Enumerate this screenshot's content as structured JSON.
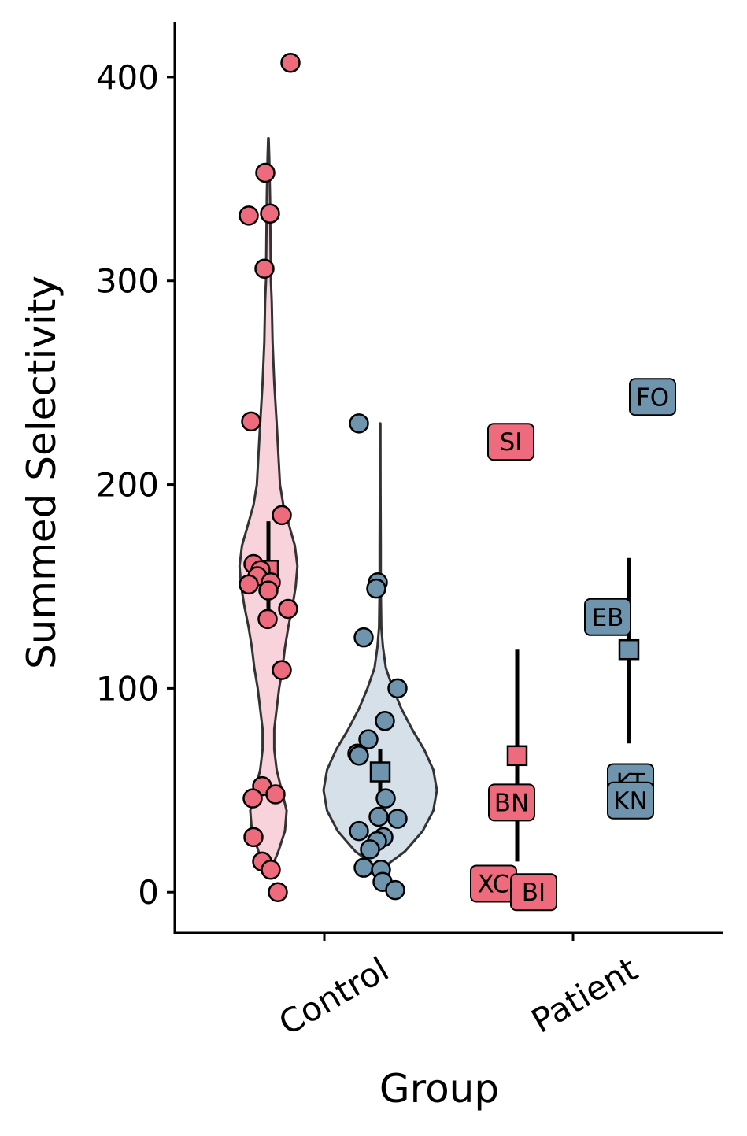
{
  "chart_data": {
    "type": "violin",
    "xlabel": "Group",
    "ylabel": "Summed Selectivity",
    "ylim": [
      -20,
      427
    ],
    "yticks": [
      0,
      100,
      200,
      300,
      400
    ],
    "categories": [
      "Control",
      "Patient"
    ],
    "colors": {
      "pink_fill": "#ee6b7e",
      "blue_fill": "#6f94ad",
      "pink_violin": "#f8d3dc",
      "blue_violin": "#d5e0e8",
      "outline": "#000000",
      "violin_line": "#333333"
    },
    "control_violins": [
      {
        "series": "pink",
        "y_range": [
          10,
          370
        ],
        "profile": [
          [
            10,
            0.02
          ],
          [
            20,
            0.12
          ],
          [
            30,
            0.2
          ],
          [
            40,
            0.22
          ],
          [
            50,
            0.16
          ],
          [
            60,
            0.1
          ],
          [
            70,
            0.07
          ],
          [
            80,
            0.07
          ],
          [
            90,
            0.1
          ],
          [
            100,
            0.13
          ],
          [
            110,
            0.17
          ],
          [
            120,
            0.2
          ],
          [
            130,
            0.24
          ],
          [
            140,
            0.29
          ],
          [
            150,
            0.33
          ],
          [
            160,
            0.35
          ],
          [
            170,
            0.32
          ],
          [
            180,
            0.25
          ],
          [
            190,
            0.18
          ],
          [
            200,
            0.14
          ],
          [
            215,
            0.12
          ],
          [
            230,
            0.1
          ],
          [
            250,
            0.07
          ],
          [
            270,
            0.05
          ],
          [
            290,
            0.04
          ],
          [
            300,
            0.03
          ],
          [
            320,
            0.025
          ],
          [
            340,
            0.02
          ],
          [
            360,
            0.01
          ],
          [
            370,
            0.003
          ]
        ],
        "mean": 158,
        "ci": [
          135,
          182
        ]
      },
      {
        "series": "blue",
        "y_range": [
          13,
          230
        ],
        "profile": [
          [
            13,
            0.08
          ],
          [
            20,
            0.35
          ],
          [
            30,
            0.6
          ],
          [
            40,
            0.75
          ],
          [
            50,
            0.8
          ],
          [
            60,
            0.75
          ],
          [
            70,
            0.62
          ],
          [
            80,
            0.45
          ],
          [
            90,
            0.3
          ],
          [
            100,
            0.18
          ],
          [
            110,
            0.08
          ],
          [
            120,
            0.04
          ],
          [
            130,
            0.015
          ],
          [
            150,
            0.008
          ],
          [
            170,
            0.008
          ],
          [
            200,
            0.005
          ],
          [
            230,
            0.003
          ]
        ],
        "mean": 59,
        "ci": [
          47,
          70
        ]
      }
    ],
    "control_points": [
      {
        "series": "pink",
        "values": [
          407,
          353,
          333,
          332,
          306,
          231,
          185,
          161,
          158,
          155,
          152,
          151,
          148,
          139,
          134,
          109,
          52,
          48,
          46,
          27,
          15,
          11,
          0
        ]
      },
      {
        "series": "blue",
        "values": [
          230,
          152,
          149,
          125,
          100,
          84,
          75,
          68,
          67,
          46,
          37,
          36,
          30,
          27,
          25,
          21,
          12,
          11,
          5,
          1
        ]
      }
    ],
    "patient_summaries": [
      {
        "series": "pink",
        "mean": 67,
        "ci": [
          15,
          119
        ]
      },
      {
        "series": "blue",
        "mean": 119,
        "ci": [
          73,
          164
        ]
      }
    ],
    "patient_labels": [
      {
        "series": "pink",
        "label": "SI",
        "value": 221
      },
      {
        "series": "pink",
        "label": "BN",
        "value": 44
      },
      {
        "series": "pink",
        "label": "XC",
        "value": 3
      },
      {
        "series": "pink",
        "label": "BI",
        "value": 0
      },
      {
        "series": "blue",
        "label": "FO",
        "value": 243
      },
      {
        "series": "blue",
        "label": "EB",
        "value": 135
      },
      {
        "series": "blue",
        "label": "KT",
        "value": 54
      },
      {
        "series": "blue",
        "label": "KN",
        "value": 45
      }
    ]
  }
}
